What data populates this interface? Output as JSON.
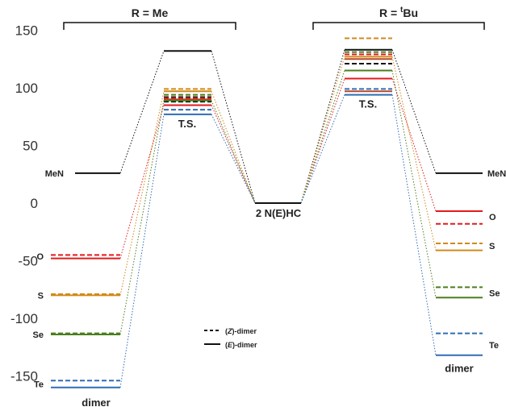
{
  "chart_data": {
    "type": "energy-level diagram",
    "ylim": [
      -170,
      155
    ],
    "yticks": [
      150,
      100,
      50,
      0,
      -50,
      -100,
      -150
    ],
    "groups": [
      {
        "id": "me",
        "label": "R = Me"
      },
      {
        "id": "tbu",
        "label": "R = ",
        "label_sup": "t",
        "label_tail": "Bu"
      }
    ],
    "labels": {
      "ts": "T.S.",
      "center": "2 N(E)HC",
      "dimer": "dimer",
      "nitrene_me": "MeN",
      "nitrene_tbu": "MeN"
    },
    "colors": {
      "nitrene": "#111111",
      "O": "#e31a1c",
      "S": "#d08a1a",
      "Se": "#4a7f1f",
      "Te": "#2f6db5",
      "other": "#b54a2a",
      "center": "#111111"
    },
    "levels": {
      "center": 0,
      "me": {
        "nitrene": 26,
        "ts_nitrene": 132,
        "dimer": {
          "O": {
            "Z": -45,
            "E": -48
          },
          "S": {
            "Z": -79,
            "E": -80
          },
          "Se": {
            "Z": -113,
            "E": -114
          },
          "Te": {
            "Z": -154,
            "E": -160
          }
        },
        "ts": {
          "O": {
            "Z": 91,
            "E": 85
          },
          "S": {
            "Z": 99,
            "E": 97
          },
          "Se": {
            "Z": 94,
            "E": 89
          },
          "Te": {
            "Z": 81,
            "E": 77
          }
        }
      },
      "tbu": {
        "nitrene": 26,
        "ts_nitrene": 133,
        "dimer": {
          "O": {
            "Z": -18,
            "E": -7
          },
          "S": {
            "Z": -35,
            "E": -41
          },
          "Se": {
            "Z": -73,
            "E": -82
          },
          "Te": {
            "Z": -113,
            "E": -132
          }
        },
        "ts": {
          "O": {
            "Z": 129,
            "E": 108
          },
          "S": {
            "Z": 143,
            "E": 127
          },
          "Se": {
            "Z": 131,
            "E": 115
          },
          "Te": {
            "Z": 99,
            "E": 94
          }
        }
      }
    },
    "element_labels_me": [
      {
        "text": "O",
        "y": -46
      },
      {
        "text": "S",
        "y": -80
      },
      {
        "text": "Se",
        "y": -114
      },
      {
        "text": "Te",
        "y": -157
      }
    ],
    "element_labels_tbu": [
      {
        "text": "O",
        "y": -12
      },
      {
        "text": "S",
        "y": -37
      },
      {
        "text": "Se",
        "y": -78
      },
      {
        "text": "Te",
        "y": -123
      }
    ],
    "legend": [
      {
        "style": "dashed",
        "label": "(Z)-dimer",
        "label_italic": "Z",
        "label_tail": "-dimer"
      },
      {
        "style": "solid",
        "label": "(E)-dimer",
        "label_italic": "E",
        "label_tail": "-dimer"
      }
    ],
    "extra_ts_lines": [
      92,
      90,
      88,
      97,
      121,
      125
    ]
  }
}
